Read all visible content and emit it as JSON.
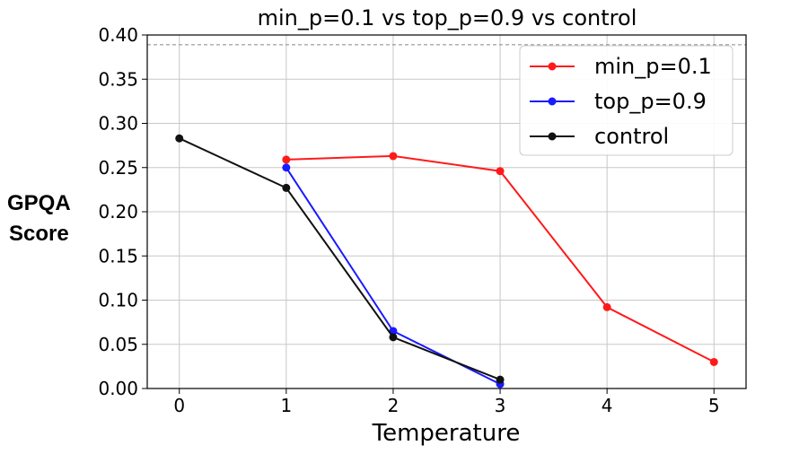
{
  "chart_data": {
    "type": "line",
    "title": "min_p=0.1 vs top_p=0.9 vs control",
    "xlabel": "Temperature",
    "ylabel_lines": [
      "GPQA",
      "Score"
    ],
    "xlim": [
      -0.3,
      5.3
    ],
    "ylim": [
      0,
      0.4
    ],
    "xticks": [
      0,
      1,
      2,
      3,
      4,
      5
    ],
    "yticks": [
      "0.00",
      "0.05",
      "0.10",
      "0.15",
      "0.20",
      "0.25",
      "0.30",
      "0.35",
      "0.40"
    ],
    "grid": true,
    "reference_line": 0.389,
    "legend_position": "top-right",
    "series": [
      {
        "name": "min_p=0.1",
        "color": "#ff1a1a",
        "x": [
          1,
          2,
          3,
          4,
          5
        ],
        "y": [
          0.259,
          0.263,
          0.246,
          0.092,
          0.03
        ]
      },
      {
        "name": "top_p=0.9",
        "color": "#1a1aff",
        "x": [
          1,
          2,
          3
        ],
        "y": [
          0.25,
          0.065,
          0.005
        ]
      },
      {
        "name": "control",
        "color": "#111111",
        "x": [
          0,
          1,
          2,
          3
        ],
        "y": [
          0.283,
          0.227,
          0.058,
          0.01
        ]
      }
    ]
  }
}
